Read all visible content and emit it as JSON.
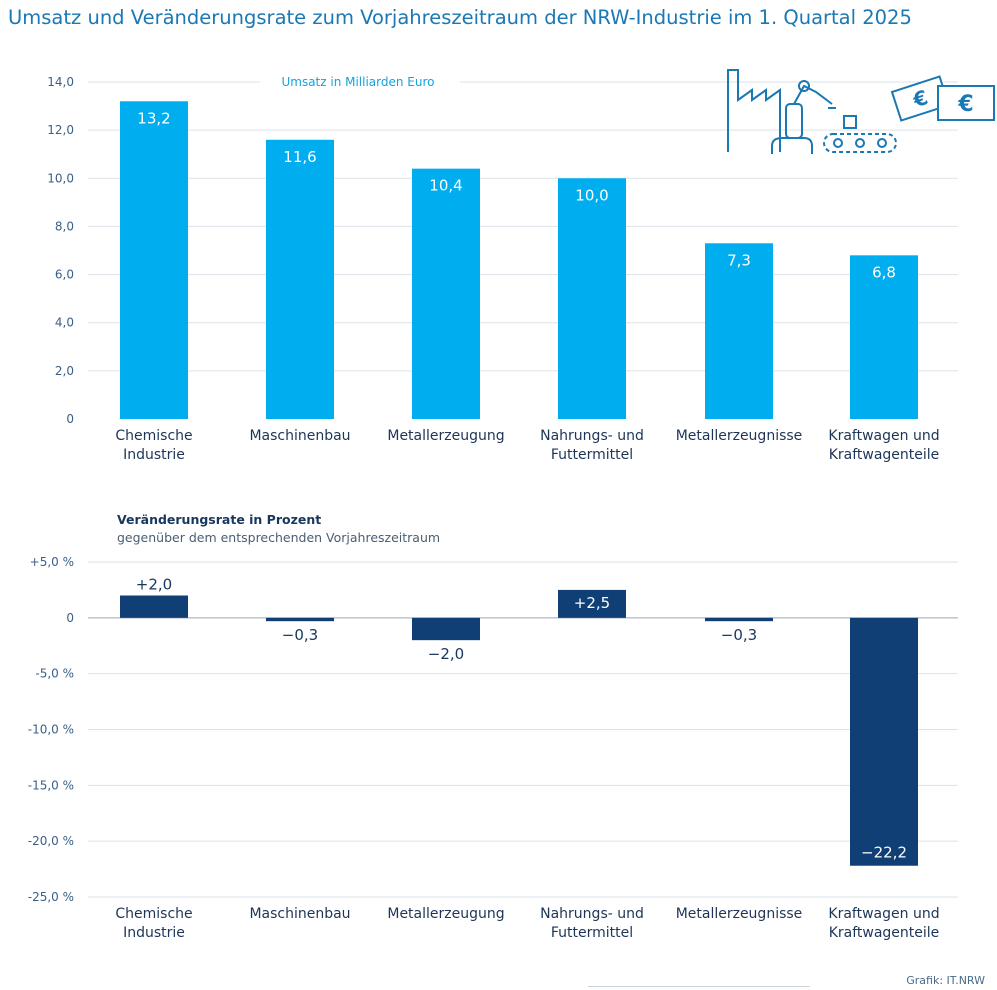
{
  "title": "Umsatz und Veränderungsrate zum Vorjahreszeitraum der NRW-Industrie im 1. Quartal 2025",
  "source": "Grafik: IT.NRW",
  "colors": {
    "top_bar": "#00aeef",
    "bottom_bar": "#0f3f74",
    "grid": "#dde3e9",
    "title": "#1a78b4"
  },
  "chart_data": [
    {
      "type": "bar",
      "title": "Umsatz in Milliarden Euro",
      "categories": [
        [
          "Chemische",
          "Industrie"
        ],
        [
          "Maschinenbau"
        ],
        [
          "Metallerzeugung"
        ],
        [
          "Nahrungs- und",
          "Futtermittel"
        ],
        [
          "Metallerzeugnisse"
        ],
        [
          "Kraftwagen und",
          "Kraftwagenteile"
        ]
      ],
      "values": [
        13.2,
        11.6,
        10.4,
        10.0,
        7.3,
        6.8
      ],
      "value_labels": [
        "13,2",
        "11,6",
        "10,4",
        "10,0",
        "7,3",
        "6,8"
      ],
      "ylim": [
        0,
        14
      ],
      "yticks": [
        0,
        2,
        4,
        6,
        8,
        10,
        12,
        14
      ],
      "ytick_labels": [
        "0",
        "2,0",
        "4,0",
        "6,0",
        "8,0",
        "10,0",
        "12,0",
        "14,0"
      ],
      "grid": true
    },
    {
      "type": "bar",
      "title": "Veränderungsrate in Prozent",
      "subtitle": "gegenüber dem entsprechenden Vorjahreszeitraum",
      "categories": [
        [
          "Chemische",
          "Industrie"
        ],
        [
          "Maschinenbau"
        ],
        [
          "Metallerzeugung"
        ],
        [
          "Nahrungs- und",
          "Futtermittel"
        ],
        [
          "Metallerzeugnisse"
        ],
        [
          "Kraftwagen und",
          "Kraftwagenteile"
        ]
      ],
      "values": [
        2.0,
        -0.3,
        -2.0,
        2.5,
        -0.3,
        -22.2
      ],
      "value_labels": [
        "+2,0",
        "−0,3",
        "−2,0",
        "+2,5",
        "−0,3",
        "−22,2"
      ],
      "ylim": [
        -25,
        5
      ],
      "yticks": [
        5,
        0,
        -5,
        -10,
        -15,
        -20,
        -25
      ],
      "ytick_labels": [
        "+5,0 %",
        "0",
        "-5,0 %",
        "-10,0 %",
        "-15,0 %",
        "-20,0 %",
        "-25,0 %"
      ],
      "grid": true
    }
  ],
  "icons": [
    "factory-icon",
    "robot-arm-icon",
    "conveyor-belt-icon",
    "euro-banknote-icon",
    "euro-banknote-icon"
  ]
}
